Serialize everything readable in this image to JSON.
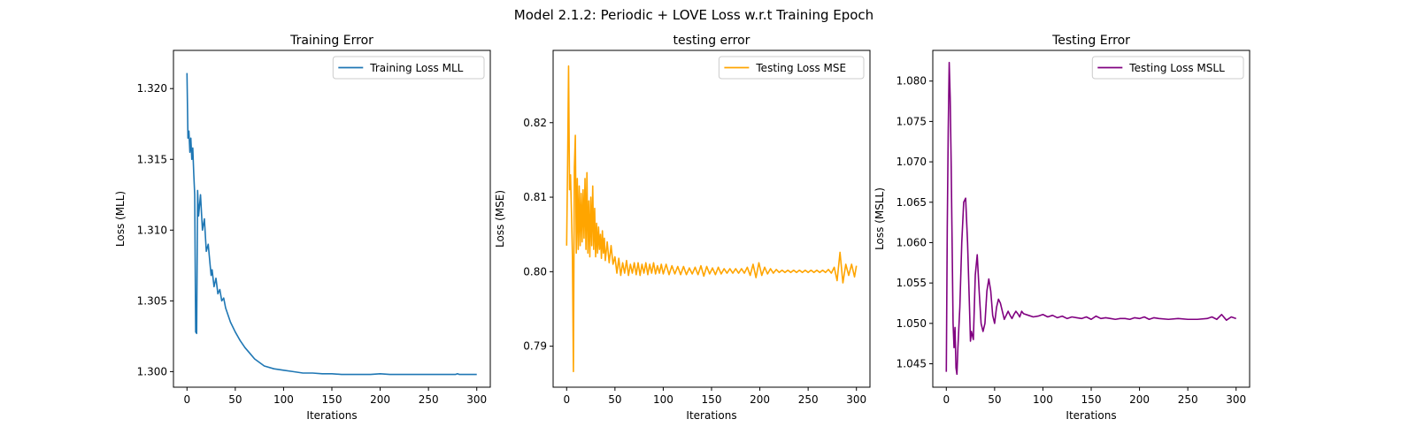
{
  "figure": {
    "suptitle": "Model 2.1.2: Periodic + LOVE Loss w.r.t Training Epoch"
  },
  "chart_data": [
    {
      "type": "line",
      "title": "Training Error",
      "xlabel": "Iterations",
      "ylabel": "Loss (MLL)",
      "xlim": [
        -14,
        314
      ],
      "ylim": [
        1.2989,
        1.3227
      ],
      "xticks": [
        0,
        50,
        100,
        150,
        200,
        250,
        300
      ],
      "yticks": [
        1.3,
        1.305,
        1.31,
        1.315,
        1.32
      ],
      "ytick_labels": [
        "1.300",
        "1.305",
        "1.310",
        "1.315",
        "1.320"
      ],
      "legend_position": "top-right",
      "grid": false,
      "series": [
        {
          "name": "Training Loss MLL",
          "color": "#1f77b4",
          "x": [
            0,
            1,
            2,
            3,
            4,
            5,
            6,
            7,
            8,
            9,
            10,
            11,
            12,
            14,
            16,
            18,
            20,
            22,
            24,
            25,
            26,
            28,
            30,
            32,
            34,
            36,
            38,
            40,
            45,
            50,
            55,
            60,
            65,
            70,
            80,
            90,
            100,
            110,
            120,
            130,
            140,
            150,
            160,
            170,
            180,
            190,
            200,
            210,
            220,
            230,
            240,
            250,
            260,
            270,
            278,
            280,
            282,
            290,
            300
          ],
          "y": [
            1.3211,
            1.3165,
            1.317,
            1.3155,
            1.3165,
            1.315,
            1.3158,
            1.314,
            1.3125,
            1.3028,
            1.3027,
            1.3128,
            1.311,
            1.3125,
            1.31,
            1.3108,
            1.3085,
            1.309,
            1.3075,
            1.3068,
            1.3072,
            1.306,
            1.3066,
            1.3055,
            1.3058,
            1.305,
            1.3052,
            1.3045,
            1.3035,
            1.3028,
            1.3022,
            1.3017,
            1.3013,
            1.3009,
            1.3004,
            1.3002,
            1.3001,
            1.3,
            1.2999,
            1.2999,
            1.29985,
            1.29985,
            1.2998,
            1.2998,
            1.2998,
            1.2998,
            1.29985,
            1.2998,
            1.2998,
            1.2998,
            1.2998,
            1.2998,
            1.2998,
            1.2998,
            1.2998,
            1.29985,
            1.2998,
            1.2998,
            1.2998
          ]
        }
      ]
    },
    {
      "type": "line",
      "title": "testing error",
      "xlabel": "Iterations",
      "ylabel": "Loss (MSE)",
      "xlim": [
        -14,
        314
      ],
      "ylim": [
        0.7845,
        0.8297
      ],
      "xticks": [
        0,
        50,
        100,
        150,
        200,
        250,
        300
      ],
      "yticks": [
        0.79,
        0.8,
        0.81,
        0.82
      ],
      "ytick_labels": [
        "0.79",
        "0.80",
        "0.81",
        "0.82"
      ],
      "legend_position": "top-right",
      "grid": false,
      "series": [
        {
          "name": "Testing Loss MSE",
          "color": "#ffa500",
          "x": [
            0,
            1,
            2,
            3,
            4,
            5,
            6,
            7,
            8,
            9,
            10,
            11,
            12,
            13,
            14,
            15,
            16,
            17,
            18,
            19,
            20,
            21,
            22,
            23,
            24,
            25,
            26,
            27,
            28,
            29,
            30,
            31,
            32,
            33,
            34,
            35,
            36,
            37,
            38,
            39,
            40,
            42,
            44,
            46,
            48,
            50,
            52,
            54,
            56,
            58,
            60,
            62,
            64,
            66,
            68,
            70,
            72,
            74,
            76,
            78,
            80,
            82,
            84,
            86,
            88,
            90,
            92,
            94,
            96,
            98,
            100,
            103,
            106,
            109,
            112,
            115,
            118,
            121,
            124,
            127,
            130,
            133,
            136,
            139,
            142,
            145,
            148,
            151,
            154,
            157,
            160,
            163,
            166,
            169,
            172,
            175,
            178,
            181,
            184,
            187,
            190,
            193,
            196,
            199,
            202,
            205,
            208,
            211,
            214,
            217,
            220,
            223,
            226,
            229,
            232,
            235,
            238,
            241,
            244,
            247,
            250,
            253,
            256,
            259,
            262,
            265,
            268,
            271,
            274,
            277,
            280,
            283,
            286,
            289,
            292,
            295,
            298,
            300
          ],
          "y": [
            0.8035,
            0.8145,
            0.8276,
            0.811,
            0.813,
            0.808,
            0.802,
            0.7866,
            0.814,
            0.8183,
            0.8025,
            0.8125,
            0.803,
            0.8115,
            0.8035,
            0.8105,
            0.804,
            0.811,
            0.8045,
            0.8125,
            0.803,
            0.8133,
            0.8025,
            0.8095,
            0.802,
            0.81,
            0.8035,
            0.8115,
            0.803,
            0.8085,
            0.802,
            0.8065,
            0.8025,
            0.806,
            0.803,
            0.805,
            0.8018,
            0.8055,
            0.8025,
            0.8045,
            0.8015,
            0.804,
            0.8012,
            0.8035,
            0.801,
            0.802,
            0.7998,
            0.8018,
            0.7995,
            0.8012,
            0.7998,
            0.8015,
            0.7995,
            0.801,
            0.7998,
            0.8012,
            0.7996,
            0.8012,
            0.7995,
            0.801,
            0.7998,
            0.8012,
            0.7996,
            0.801,
            0.7998,
            0.8012,
            0.7997,
            0.8008,
            0.7998,
            0.801,
            0.7997,
            0.801,
            0.7996,
            0.8008,
            0.7997,
            0.8007,
            0.7996,
            0.8007,
            0.7996,
            0.8005,
            0.7997,
            0.8006,
            0.7996,
            0.8008,
            0.7994,
            0.8007,
            0.7997,
            0.8005,
            0.7996,
            0.8006,
            0.7997,
            0.8004,
            0.7998,
            0.8004,
            0.7998,
            0.8004,
            0.7998,
            0.8004,
            0.7998,
            0.8006,
            0.7995,
            0.801,
            0.7992,
            0.8012,
            0.7995,
            0.8006,
            0.7997,
            0.8004,
            0.7998,
            0.8003,
            0.7999,
            0.8002,
            0.7999,
            0.8002,
            0.7999,
            0.8002,
            0.7999,
            0.8002,
            0.7999,
            0.8002,
            0.7999,
            0.8002,
            0.7999,
            0.8002,
            0.7999,
            0.8002,
            0.7999,
            0.8003,
            0.7998,
            0.8006,
            0.7988,
            0.8026,
            0.7985,
            0.801,
            0.7995,
            0.801,
            0.7993,
            0.8008
          ]
        }
      ]
    },
    {
      "type": "line",
      "title": "Testing Error",
      "xlabel": "Iterations",
      "ylabel": "Loss (MSLL)",
      "xlim": [
        -14,
        314
      ],
      "ylim": [
        1.0421,
        1.0838
      ],
      "xticks": [
        0,
        50,
        100,
        150,
        200,
        250,
        300
      ],
      "yticks": [
        1.045,
        1.05,
        1.055,
        1.06,
        1.065,
        1.07,
        1.075,
        1.08
      ],
      "ytick_labels": [
        "1.045",
        "1.050",
        "1.055",
        "1.060",
        "1.065",
        "1.070",
        "1.075",
        "1.080"
      ],
      "legend_position": "top-right",
      "grid": false,
      "series": [
        {
          "name": "Testing Loss MSLL",
          "color": "#800080",
          "x": [
            0,
            1,
            2,
            3,
            4,
            5,
            6,
            7,
            8,
            9,
            10,
            11,
            12,
            14,
            16,
            18,
            20,
            22,
            24,
            25,
            26,
            28,
            30,
            32,
            34,
            36,
            38,
            40,
            42,
            44,
            46,
            48,
            50,
            52,
            54,
            56,
            58,
            60,
            62,
            64,
            66,
            68,
            70,
            72,
            74,
            76,
            78,
            80,
            85,
            90,
            95,
            100,
            105,
            110,
            115,
            120,
            125,
            130,
            135,
            140,
            145,
            150,
            155,
            160,
            165,
            170,
            175,
            180,
            185,
            190,
            195,
            200,
            205,
            210,
            215,
            220,
            230,
            240,
            250,
            260,
            270,
            275,
            280,
            285,
            290,
            295,
            300
          ],
          "y": [
            1.044,
            1.062,
            1.074,
            1.0823,
            1.078,
            1.07,
            1.06,
            1.05,
            1.047,
            1.0495,
            1.0445,
            1.0437,
            1.047,
            1.052,
            1.06,
            1.065,
            1.0655,
            1.06,
            1.052,
            1.0478,
            1.049,
            1.048,
            1.056,
            1.0585,
            1.054,
            1.05,
            1.049,
            1.05,
            1.054,
            1.0555,
            1.054,
            1.051,
            1.05,
            1.052,
            1.053,
            1.0525,
            1.0515,
            1.0505,
            1.051,
            1.0515,
            1.051,
            1.0506,
            1.0511,
            1.0515,
            1.0512,
            1.0508,
            1.0515,
            1.0512,
            1.051,
            1.0508,
            1.0509,
            1.0511,
            1.0508,
            1.051,
            1.0507,
            1.0509,
            1.0506,
            1.0508,
            1.0507,
            1.0506,
            1.0508,
            1.0505,
            1.0509,
            1.0506,
            1.0507,
            1.0506,
            1.0505,
            1.0506,
            1.0506,
            1.0505,
            1.0507,
            1.0506,
            1.0508,
            1.0505,
            1.0507,
            1.0506,
            1.0505,
            1.0506,
            1.0505,
            1.0505,
            1.0506,
            1.0508,
            1.0505,
            1.0511,
            1.0504,
            1.0508,
            1.0506
          ]
        }
      ]
    }
  ]
}
